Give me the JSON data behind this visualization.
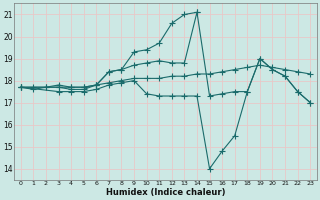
{
  "xlabel": "Humidex (Indice chaleur)",
  "xlim": [
    -0.5,
    23.5
  ],
  "ylim": [
    13.5,
    21.5
  ],
  "yticks": [
    14,
    15,
    16,
    17,
    18,
    19,
    20,
    21
  ],
  "xticks": [
    0,
    1,
    2,
    3,
    4,
    5,
    6,
    7,
    8,
    9,
    10,
    11,
    12,
    13,
    14,
    15,
    16,
    17,
    18,
    19,
    20,
    21,
    22,
    23
  ],
  "background_color": "#cce8e4",
  "grid_color": "#e8c8c8",
  "line_color": "#1a6b6b",
  "series": [
    {
      "x": [
        0,
        1,
        2,
        3,
        4,
        5,
        6,
        7,
        8,
        9,
        10,
        11,
        12,
        13,
        14
      ],
      "y": [
        17.7,
        17.6,
        17.7,
        17.7,
        17.6,
        17.6,
        17.8,
        18.4,
        18.5,
        19.3,
        19.4,
        19.7,
        20.6,
        21.0,
        21.1
      ]
    },
    {
      "x": [
        0,
        1,
        2,
        3,
        4,
        5,
        6,
        7,
        8,
        9,
        10,
        11,
        12,
        13,
        14,
        15,
        16,
        17,
        18,
        19,
        20,
        21,
        22,
        23
      ],
      "y": [
        17.7,
        17.7,
        17.7,
        17.8,
        17.7,
        17.7,
        17.8,
        17.9,
        18.0,
        18.1,
        18.1,
        18.1,
        18.2,
        18.2,
        18.3,
        18.3,
        18.4,
        18.5,
        18.6,
        18.7,
        18.6,
        18.5,
        18.4,
        18.3
      ]
    },
    {
      "x": [
        0,
        3,
        4,
        5,
        6,
        7,
        8,
        9,
        10,
        11,
        12,
        13,
        14,
        15,
        16,
        17,
        18,
        19,
        20,
        21,
        22,
        23
      ],
      "y": [
        17.7,
        17.7,
        17.7,
        17.7,
        17.8,
        18.4,
        18.5,
        18.7,
        18.8,
        18.9,
        18.8,
        18.8,
        21.1,
        17.3,
        17.4,
        17.5,
        17.5,
        19.0,
        18.5,
        18.2,
        17.5,
        17.0
      ]
    },
    {
      "x": [
        0,
        3,
        4,
        5,
        6,
        7,
        8,
        9,
        10,
        11,
        12,
        13,
        14,
        15,
        16,
        17,
        18,
        19,
        20,
        21,
        22,
        23
      ],
      "y": [
        17.7,
        17.5,
        17.5,
        17.5,
        17.6,
        17.8,
        17.9,
        18.0,
        17.4,
        17.3,
        17.3,
        17.3,
        17.3,
        14.0,
        14.8,
        15.5,
        17.5,
        19.0,
        18.5,
        18.2,
        17.5,
        17.0
      ]
    }
  ]
}
